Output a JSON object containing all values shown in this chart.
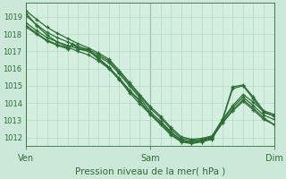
{
  "title": "Pression niveau de la mer( hPa )",
  "xtick_labels": [
    "Ven",
    "Sam",
    "Dim"
  ],
  "xtick_positions": [
    0,
    48,
    96
  ],
  "yticks": [
    1012,
    1013,
    1014,
    1015,
    1016,
    1017,
    1018,
    1019
  ],
  "ylim": [
    1011.5,
    1019.8
  ],
  "xlim": [
    0,
    96
  ],
  "bg_color": "#cce8d8",
  "plot_bg_color": "#d4eee0",
  "grid_color": "#b0d4c0",
  "line_color": "#2d6e35",
  "lines": [
    [
      0,
      1019.35,
      4,
      1018.85,
      8,
      1018.4,
      12,
      1018.05,
      16,
      1017.75,
      20,
      1017.45,
      24,
      1017.2,
      28,
      1016.9,
      32,
      1016.55,
      36,
      1015.9,
      40,
      1015.2,
      44,
      1014.5,
      48,
      1013.8,
      52,
      1013.25,
      56,
      1012.6,
      60,
      1012.05,
      64,
      1011.9,
      68,
      1011.95,
      72,
      1012.1,
      76,
      1013.05,
      80,
      1013.85,
      84,
      1014.5,
      88,
      1014.05,
      92,
      1013.5,
      96,
      1013.25
    ],
    [
      0,
      1019.05,
      4,
      1018.55,
      8,
      1018.1,
      12,
      1017.8,
      16,
      1017.55,
      20,
      1017.3,
      24,
      1017.1,
      28,
      1016.8,
      32,
      1016.45,
      36,
      1015.8,
      40,
      1015.1,
      44,
      1014.4,
      48,
      1013.7,
      52,
      1013.15,
      56,
      1012.5,
      60,
      1011.95,
      64,
      1011.85,
      68,
      1011.9,
      72,
      1012.05,
      76,
      1012.95,
      80,
      1013.75,
      84,
      1014.35,
      88,
      1013.85,
      92,
      1013.3,
      96,
      1013.05
    ],
    [
      0,
      1018.65,
      4,
      1018.2,
      8,
      1017.8,
      12,
      1017.55,
      16,
      1017.35,
      20,
      1017.15,
      24,
      1017.0,
      28,
      1016.7,
      32,
      1016.35,
      36,
      1015.7,
      40,
      1015.0,
      44,
      1014.3,
      48,
      1013.5,
      52,
      1012.95,
      56,
      1012.35,
      60,
      1011.85,
      64,
      1011.75,
      68,
      1011.85,
      72,
      1012.0,
      76,
      1012.85,
      80,
      1013.6,
      84,
      1014.2,
      88,
      1013.7,
      92,
      1013.15,
      96,
      1012.75
    ],
    [
      0,
      1018.5,
      4,
      1018.05,
      8,
      1017.65,
      12,
      1017.4,
      16,
      1017.2,
      18,
      1017.4,
      20,
      1017.2,
      24,
      1017.1,
      28,
      1016.6,
      32,
      1016.1,
      36,
      1015.4,
      40,
      1014.7,
      44,
      1014.1,
      48,
      1013.4,
      52,
      1012.85,
      56,
      1012.2,
      60,
      1011.8,
      64,
      1011.7,
      68,
      1011.8,
      72,
      1011.95,
      76,
      1013.05,
      80,
      1014.95,
      84,
      1015.05,
      88,
      1014.35,
      92,
      1013.55,
      96,
      1013.35
    ],
    [
      0,
      1018.4,
      4,
      1018.0,
      8,
      1017.6,
      12,
      1017.35,
      16,
      1017.15,
      18,
      1017.45,
      20,
      1017.15,
      24,
      1017.05,
      28,
      1016.55,
      32,
      1016.05,
      36,
      1015.45,
      40,
      1014.75,
      44,
      1014.15,
      48,
      1013.35,
      52,
      1012.75,
      56,
      1012.15,
      60,
      1011.75,
      64,
      1011.65,
      68,
      1011.75,
      72,
      1011.9,
      76,
      1013.0,
      80,
      1014.85,
      84,
      1015.0,
      88,
      1014.25,
      92,
      1013.45,
      96,
      1013.25
    ],
    [
      0,
      1019.2,
      4,
      1018.5,
      8,
      1017.95,
      12,
      1017.55,
      16,
      1017.25,
      20,
      1017.0,
      24,
      1016.8,
      28,
      1016.45,
      32,
      1016.0,
      36,
      1015.35,
      40,
      1014.6,
      44,
      1013.95,
      48,
      1013.35,
      52,
      1012.85,
      56,
      1012.3,
      60,
      1011.85,
      64,
      1011.75,
      68,
      1011.85,
      72,
      1012.0,
      76,
      1012.85,
      80,
      1013.55,
      84,
      1014.1,
      88,
      1013.6,
      92,
      1013.05,
      96,
      1012.75
    ]
  ]
}
